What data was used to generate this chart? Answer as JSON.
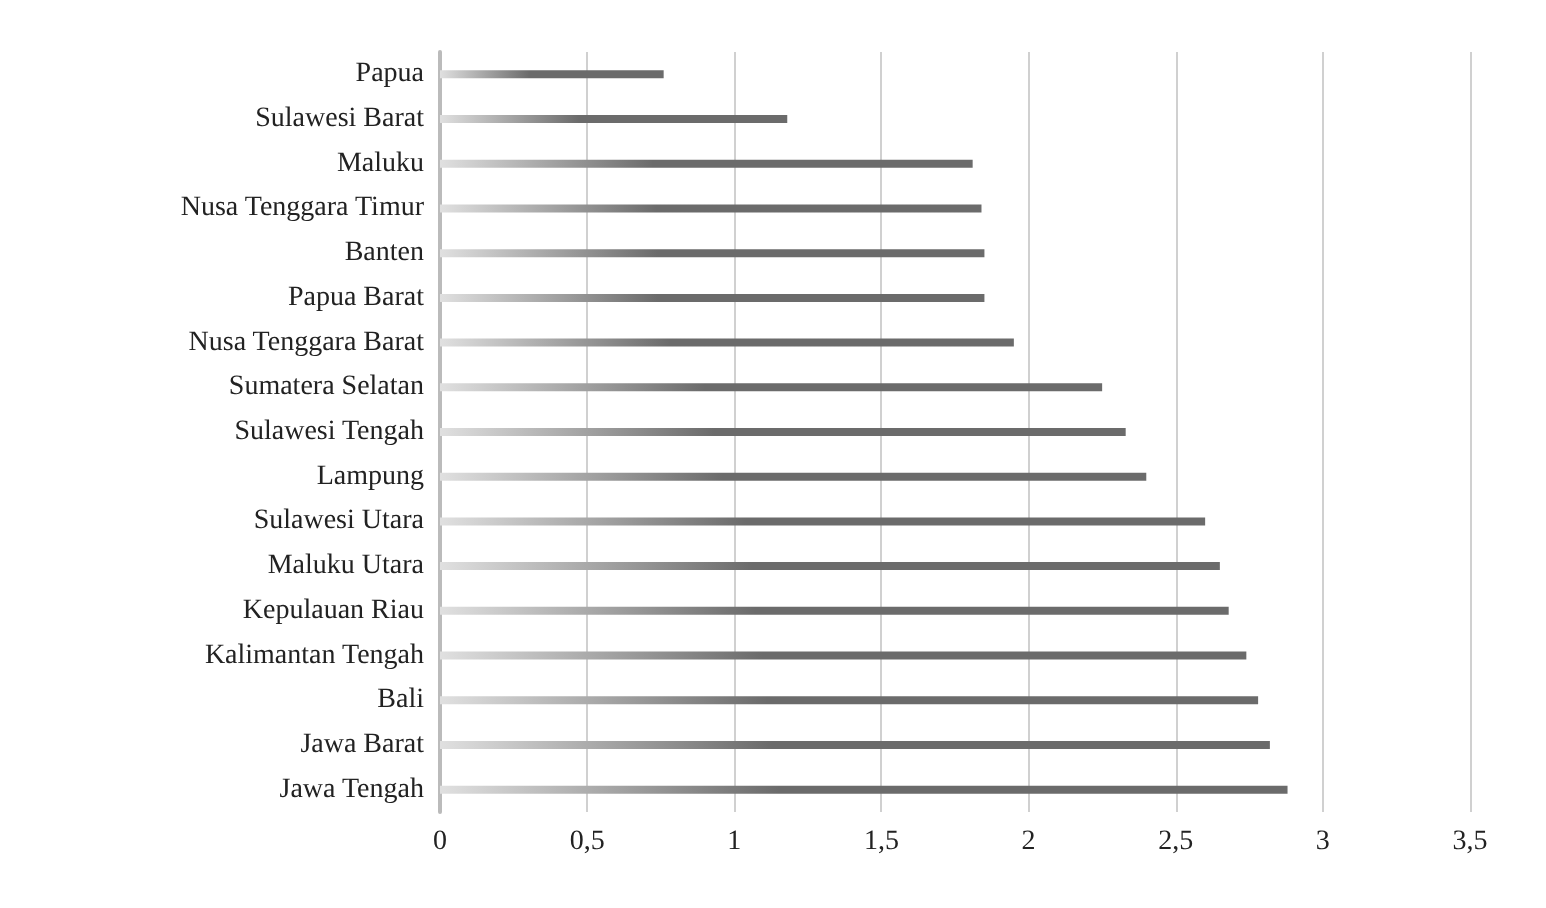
{
  "chart_data": {
    "type": "bar",
    "orientation": "horizontal",
    "categories": [
      "Papua",
      "Sulawesi Barat",
      "Maluku",
      "Nusa Tenggara Timur",
      "Banten",
      "Papua Barat",
      "Nusa Tenggara Barat",
      "Sumatera Selatan",
      "Sulawesi Tengah",
      "Lampung",
      "Sulawesi Utara",
      "Maluku Utara",
      "Kepulauan Riau",
      "Kalimantan Tengah",
      "Bali",
      "Jawa Barat",
      "Jawa Tengah"
    ],
    "values": [
      0.76,
      1.18,
      1.81,
      1.84,
      1.85,
      1.85,
      1.95,
      2.25,
      2.33,
      2.4,
      2.6,
      2.65,
      2.68,
      2.74,
      2.78,
      2.82,
      2.88
    ],
    "color": "#6b6b6b",
    "xlim": [
      0,
      3.5
    ],
    "xticks": [
      0,
      {
        "value": 0.5,
        "label": "0,5"
      },
      1,
      {
        "value": 1.5,
        "label": "1,5"
      },
      2,
      {
        "value": 2.5,
        "label": "2,5"
      },
      3,
      {
        "value": 3.5,
        "label": "3,5"
      }
    ],
    "grid": "x"
  }
}
